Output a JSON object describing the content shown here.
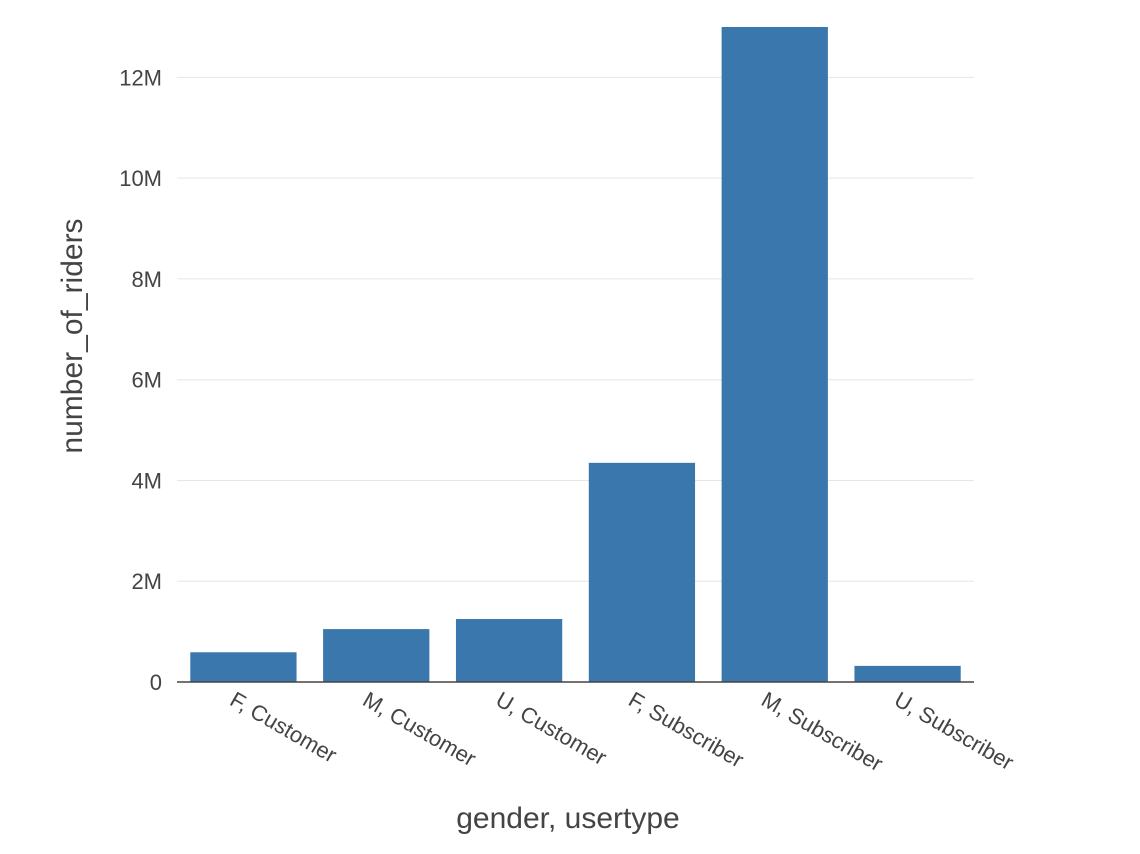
{
  "chart_data": {
    "type": "bar",
    "categories": [
      "F, Customer",
      "M, Customer",
      "U, Customer",
      "F, Subscriber",
      "M, Subscriber",
      "U, Subscriber"
    ],
    "values": [
      590000,
      1050000,
      1250000,
      4350000,
      13000000,
      320000
    ],
    "xlabel": "gender, usertype",
    "ylabel": "number_of_riders",
    "ylim": [
      0,
      13000000
    ],
    "yticks": [
      {
        "value": 0,
        "label": "0"
      },
      {
        "value": 2000000,
        "label": "2M"
      },
      {
        "value": 4000000,
        "label": "4M"
      },
      {
        "value": 6000000,
        "label": "6M"
      },
      {
        "value": 8000000,
        "label": "8M"
      },
      {
        "value": 10000000,
        "label": "10M"
      },
      {
        "value": 12000000,
        "label": "12M"
      }
    ],
    "grid": true,
    "bar_color": "#3a77ad",
    "grid_color": "#e6e6e6",
    "axis_color": "#444444"
  }
}
